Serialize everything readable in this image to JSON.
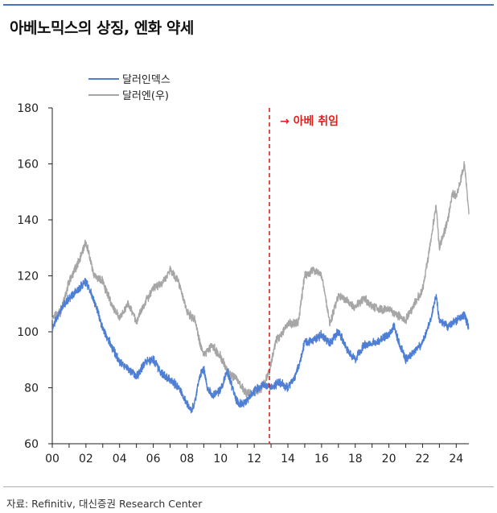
{
  "title": "아베노믹스의 상징, 엔화 약세",
  "source": "자료: Refinitiv, 대신증권 Research Center",
  "chart_data": {
    "type": "line",
    "title": "아베노믹스의 상징, 엔화 약세",
    "xlabel": "",
    "ylabel": "",
    "x_tick_labels": [
      "00",
      "02",
      "04",
      "06",
      "08",
      "10",
      "12",
      "14",
      "16",
      "18",
      "20",
      "22",
      "24"
    ],
    "x_range": [
      2000,
      2024.75
    ],
    "ylim": [
      60,
      180
    ],
    "y_ticks": [
      60,
      80,
      100,
      120,
      140,
      160,
      180
    ],
    "legend_position": "top-left",
    "grid": false,
    "annotation": {
      "text": "→ 아베 취임",
      "x": 2012.9,
      "color": "#e0201c"
    },
    "series": [
      {
        "name": "달러인덱스",
        "color": "#4f7fd4",
        "x": [
          2000.0,
          2000.5,
          2001.0,
          2001.5,
          2002.0,
          2002.5,
          2003.0,
          2003.5,
          2004.0,
          2004.5,
          2005.0,
          2005.5,
          2006.0,
          2006.5,
          2007.0,
          2007.5,
          2008.0,
          2008.3,
          2008.5,
          2008.8,
          2009.0,
          2009.2,
          2009.5,
          2010.0,
          2010.4,
          2010.8,
          2011.0,
          2011.3,
          2011.6,
          2012.0,
          2012.3,
          2012.6,
          2013.0,
          2013.5,
          2014.0,
          2014.5,
          2015.0,
          2015.5,
          2016.0,
          2016.5,
          2017.0,
          2017.5,
          2018.0,
          2018.5,
          2019.0,
          2019.5,
          2020.0,
          2020.3,
          2020.6,
          2021.0,
          2021.5,
          2022.0,
          2022.5,
          2022.8,
          2023.0,
          2023.5,
          2024.0,
          2024.5,
          2024.75
        ],
        "values": [
          101,
          108,
          112,
          115,
          118,
          111,
          101,
          95,
          89,
          87,
          84,
          89,
          90,
          85,
          83,
          80,
          74,
          72,
          76,
          85,
          87,
          80,
          77,
          79,
          86,
          78,
          75,
          74,
          76,
          79,
          80,
          81,
          80,
          82,
          80,
          85,
          96,
          97,
          99,
          96,
          100,
          94,
          90,
          95,
          96,
          97,
          99,
          102,
          96,
          90,
          93,
          96,
          105,
          113,
          104,
          102,
          104,
          106,
          101
        ]
      },
      {
        "name": "달러엔(우)",
        "color": "#a6a6a6",
        "x": [
          2000.0,
          2000.5,
          2001.0,
          2001.5,
          2002.0,
          2002.5,
          2003.0,
          2003.5,
          2004.0,
          2004.5,
          2005.0,
          2005.5,
          2006.0,
          2006.5,
          2007.0,
          2007.5,
          2008.0,
          2008.5,
          2008.8,
          2009.0,
          2009.5,
          2010.0,
          2010.5,
          2011.0,
          2011.5,
          2012.0,
          2012.5,
          2012.9,
          2013.3,
          2013.6,
          2014.0,
          2014.6,
          2015.0,
          2015.5,
          2016.0,
          2016.5,
          2017.0,
          2017.5,
          2018.0,
          2018.5,
          2019.0,
          2019.5,
          2020.0,
          2020.5,
          2021.0,
          2021.5,
          2022.0,
          2022.3,
          2022.8,
          2023.0,
          2023.5,
          2023.8,
          2024.0,
          2024.5,
          2024.75
        ],
        "values": [
          105,
          107,
          118,
          124,
          132,
          120,
          118,
          110,
          105,
          110,
          104,
          110,
          116,
          117,
          122,
          118,
          107,
          104,
          95,
          92,
          95,
          91,
          85,
          83,
          78,
          78,
          80,
          86,
          97,
          99,
          103,
          103,
          120,
          122,
          120,
          103,
          113,
          111,
          109,
          112,
          109,
          108,
          108,
          106,
          104,
          110,
          115,
          125,
          145,
          130,
          140,
          150,
          148,
          160,
          142
        ]
      }
    ]
  }
}
